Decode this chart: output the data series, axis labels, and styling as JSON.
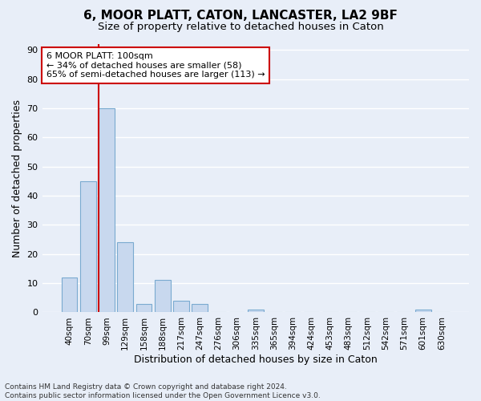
{
  "title": "6, MOOR PLATT, CATON, LANCASTER, LA2 9BF",
  "subtitle": "Size of property relative to detached houses in Caton",
  "xlabel": "Distribution of detached houses by size in Caton",
  "ylabel": "Number of detached properties",
  "categories": [
    "40sqm",
    "70sqm",
    "99sqm",
    "129sqm",
    "158sqm",
    "188sqm",
    "217sqm",
    "247sqm",
    "276sqm",
    "306sqm",
    "335sqm",
    "365sqm",
    "394sqm",
    "424sqm",
    "453sqm",
    "483sqm",
    "512sqm",
    "542sqm",
    "571sqm",
    "601sqm",
    "630sqm"
  ],
  "values": [
    12,
    45,
    70,
    24,
    3,
    11,
    4,
    3,
    0,
    0,
    1,
    0,
    0,
    0,
    0,
    0,
    0,
    0,
    0,
    1,
    0
  ],
  "bar_color": "#c8d8ee",
  "bar_edge_color": "#7aaad0",
  "highlight_line_color": "#cc0000",
  "annotation_line1": "6 MOOR PLATT: 100sqm",
  "annotation_line2": "← 34% of detached houses are smaller (58)",
  "annotation_line3": "65% of semi-detached houses are larger (113) →",
  "annotation_box_color": "#ffffff",
  "annotation_box_edge_color": "#cc0000",
  "ylim_max": 92,
  "yticks": [
    0,
    10,
    20,
    30,
    40,
    50,
    60,
    70,
    80,
    90
  ],
  "plot_bg_color": "#e8eef8",
  "fig_bg_color": "#e8eef8",
  "grid_color": "#ffffff",
  "footer_text": "Contains HM Land Registry data © Crown copyright and database right 2024.\nContains public sector information licensed under the Open Government Licence v3.0."
}
